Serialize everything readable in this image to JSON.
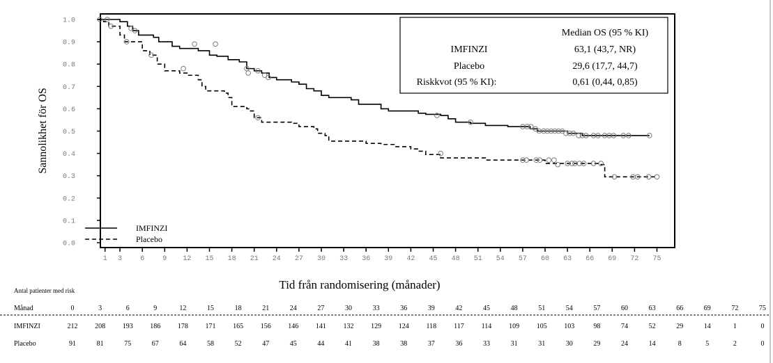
{
  "chart_data": {
    "type": "line",
    "subtype": "kaplan-meier",
    "title": "",
    "ylabel": "Sannolikhet för OS",
    "xlabel": "Tid från randomisering (månader)",
    "ylim": [
      0.0,
      1.0
    ],
    "xlim": [
      0,
      75
    ],
    "y_ticks": [
      "0.0",
      "0.1",
      "0.2",
      "0.3",
      "0.4",
      "0.5",
      "0.6",
      "0.7",
      "0.8",
      "0.9",
      "1.0"
    ],
    "x_ticks": [
      "1",
      "3",
      "6",
      "9",
      "12",
      "15",
      "18",
      "21",
      "24",
      "27",
      "30",
      "33",
      "36",
      "39",
      "42",
      "45",
      "48",
      "51",
      "54",
      "57",
      "60",
      "63",
      "66",
      "69",
      "72",
      "75"
    ],
    "grid": false,
    "legend_placement": "bottom-left",
    "legend": [
      {
        "name": "IMFINZI",
        "style": "solid"
      },
      {
        "name": "Placebo",
        "style": "dashed"
      }
    ],
    "series": [
      {
        "name": "IMFINZI",
        "style": "solid",
        "steps": [
          [
            0,
            1.0
          ],
          [
            3,
            0.99
          ],
          [
            4,
            0.97
          ],
          [
            4.7,
            0.95
          ],
          [
            5.5,
            0.93
          ],
          [
            7.5,
            0.92
          ],
          [
            8.2,
            0.9
          ],
          [
            10,
            0.88
          ],
          [
            11,
            0.87
          ],
          [
            13.5,
            0.86
          ],
          [
            15,
            0.84
          ],
          [
            16,
            0.835
          ],
          [
            17.5,
            0.82
          ],
          [
            19,
            0.81
          ],
          [
            20,
            0.78
          ],
          [
            21,
            0.77
          ],
          [
            22,
            0.76
          ],
          [
            23,
            0.74
          ],
          [
            24,
            0.73
          ],
          [
            26,
            0.72
          ],
          [
            27,
            0.71
          ],
          [
            28,
            0.69
          ],
          [
            29,
            0.68
          ],
          [
            30,
            0.66
          ],
          [
            31,
            0.65
          ],
          [
            34,
            0.64
          ],
          [
            35,
            0.62
          ],
          [
            38,
            0.6
          ],
          [
            39,
            0.59
          ],
          [
            43,
            0.58
          ],
          [
            44,
            0.575
          ],
          [
            46,
            0.57
          ],
          [
            47,
            0.555
          ],
          [
            48,
            0.54
          ],
          [
            50,
            0.535
          ],
          [
            52,
            0.525
          ],
          [
            55,
            0.52
          ],
          [
            58,
            0.51
          ],
          [
            59,
            0.5
          ],
          [
            63,
            0.49
          ],
          [
            65,
            0.48
          ],
          [
            74,
            0.48
          ]
        ],
        "censored": [
          [
            0.3,
            1.0
          ],
          [
            1.3,
            1.0
          ],
          [
            4.5,
            0.96
          ],
          [
            5,
            0.95
          ],
          [
            13,
            0.89
          ],
          [
            15.8,
            0.89
          ],
          [
            20,
            0.78
          ],
          [
            21.5,
            0.77
          ],
          [
            22.4,
            0.75
          ],
          [
            22.9,
            0.74
          ],
          [
            45.5,
            0.57
          ],
          [
            50,
            0.54
          ],
          [
            57,
            0.52
          ],
          [
            57.6,
            0.52
          ],
          [
            58.1,
            0.52
          ],
          [
            58.7,
            0.51
          ],
          [
            59.2,
            0.5
          ],
          [
            59.8,
            0.5
          ],
          [
            60.3,
            0.5
          ],
          [
            60.8,
            0.5
          ],
          [
            61.3,
            0.5
          ],
          [
            61.8,
            0.5
          ],
          [
            62.3,
            0.5
          ],
          [
            62.8,
            0.49
          ],
          [
            63.3,
            0.49
          ],
          [
            63.8,
            0.49
          ],
          [
            64.5,
            0.48
          ],
          [
            65,
            0.48
          ],
          [
            65.5,
            0.48
          ],
          [
            66.5,
            0.48
          ],
          [
            67.1,
            0.48
          ],
          [
            68,
            0.48
          ],
          [
            68.6,
            0.48
          ],
          [
            69.2,
            0.48
          ],
          [
            70.5,
            0.48
          ],
          [
            71.2,
            0.48
          ],
          [
            74,
            0.48
          ]
        ]
      },
      {
        "name": "Placebo",
        "style": "dashed",
        "steps": [
          [
            0,
            1.0
          ],
          [
            0.8,
            0.99
          ],
          [
            1.5,
            0.97
          ],
          [
            3,
            0.93
          ],
          [
            3.6,
            0.9
          ],
          [
            6,
            0.86
          ],
          [
            7,
            0.84
          ],
          [
            8,
            0.8
          ],
          [
            9,
            0.77
          ],
          [
            11,
            0.76
          ],
          [
            12,
            0.75
          ],
          [
            13.5,
            0.73
          ],
          [
            14,
            0.7
          ],
          [
            14.5,
            0.68
          ],
          [
            17,
            0.67
          ],
          [
            17.5,
            0.65
          ],
          [
            18,
            0.61
          ],
          [
            20,
            0.6
          ],
          [
            20.5,
            0.59
          ],
          [
            21,
            0.56
          ],
          [
            22,
            0.54
          ],
          [
            26,
            0.535
          ],
          [
            27,
            0.52
          ],
          [
            29,
            0.51
          ],
          [
            29.5,
            0.49
          ],
          [
            30.5,
            0.48
          ],
          [
            31,
            0.455
          ],
          [
            36,
            0.445
          ],
          [
            38,
            0.44
          ],
          [
            40,
            0.43
          ],
          [
            42,
            0.42
          ],
          [
            43,
            0.41
          ],
          [
            44,
            0.395
          ],
          [
            46,
            0.38
          ],
          [
            52,
            0.37
          ],
          [
            60,
            0.355
          ],
          [
            67.5,
            0.35
          ],
          [
            68,
            0.295
          ],
          [
            75,
            0.295
          ]
        ],
        "censored": [
          [
            1.8,
            0.97
          ],
          [
            3.9,
            0.9
          ],
          [
            7.2,
            0.84
          ],
          [
            11.5,
            0.78
          ],
          [
            20.2,
            0.76
          ],
          [
            21.5,
            0.56
          ],
          [
            46,
            0.4
          ],
          [
            57,
            0.37
          ],
          [
            57.5,
            0.37
          ],
          [
            58.8,
            0.37
          ],
          [
            59.3,
            0.37
          ],
          [
            60.5,
            0.37
          ],
          [
            61.2,
            0.37
          ],
          [
            61.7,
            0.35
          ],
          [
            63,
            0.355
          ],
          [
            63.6,
            0.355
          ],
          [
            64,
            0.355
          ],
          [
            64.6,
            0.355
          ],
          [
            65.2,
            0.355
          ],
          [
            66.5,
            0.355
          ],
          [
            67.5,
            0.355
          ],
          [
            69.3,
            0.295
          ],
          [
            71.8,
            0.295
          ],
          [
            72.4,
            0.295
          ],
          [
            73.9,
            0.295
          ],
          [
            75,
            0.295
          ]
        ]
      }
    ],
    "annotation_box": {
      "header": "Median OS (95 % KI)",
      "rows": [
        {
          "label": "IMFINZI",
          "value": "63,1 (43,7, NR)"
        },
        {
          "label": "Placebo",
          "value": "29,6 (17,7, 44,7)"
        },
        {
          "label": "Riskkvot (95 % KI):",
          "value": "0,61 (0,44, 0,85)"
        }
      ]
    },
    "risk_table": {
      "title": "Antal patienter med risk",
      "header_label": "Månad",
      "months": [
        "0",
        "3",
        "6",
        "9",
        "12",
        "15",
        "18",
        "21",
        "24",
        "27",
        "30",
        "33",
        "36",
        "39",
        "42",
        "45",
        "48",
        "51",
        "54",
        "57",
        "60",
        "63",
        "66",
        "69",
        "72",
        "75"
      ],
      "rows": [
        {
          "label": "IMFINZI",
          "values": [
            "212",
            "208",
            "193",
            "186",
            "178",
            "171",
            "165",
            "156",
            "146",
            "141",
            "132",
            "129",
            "124",
            "118",
            "117",
            "114",
            "109",
            "105",
            "103",
            "98",
            "74",
            "52",
            "29",
            "14",
            "1",
            "0"
          ]
        },
        {
          "label": "Placebo",
          "values": [
            "91",
            "81",
            "75",
            "67",
            "64",
            "58",
            "52",
            "47",
            "45",
            "44",
            "41",
            "38",
            "38",
            "37",
            "36",
            "33",
            "31",
            "31",
            "30",
            "29",
            "24",
            "14",
            "8",
            "5",
            "2",
            "0"
          ]
        }
      ]
    }
  }
}
